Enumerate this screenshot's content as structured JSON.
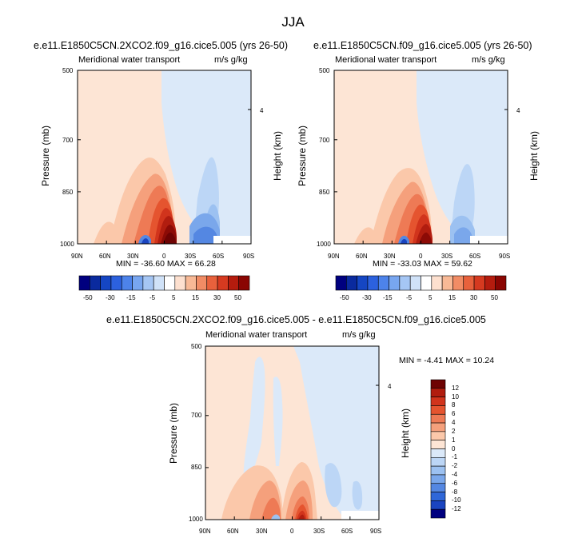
{
  "figure": {
    "title": "JJA"
  },
  "colors": {
    "positive_palette": [
      "#fde5d5",
      "#fbc8aa",
      "#f5a07c",
      "#ee7a55",
      "#e5542f",
      "#d1341c",
      "#b11d0f",
      "#8c0b06",
      "#6e0303"
    ],
    "negative_palette": [
      "#dbe9f9",
      "#bcd6f6",
      "#9cc1f1",
      "#7aa7eb",
      "#5487e2",
      "#2f67d8",
      "#1a44c0",
      "#0c2aa0",
      "#051a7a"
    ],
    "colorbar_top": [
      "#00007f",
      "#0a2a9e",
      "#1546c3",
      "#2c61de",
      "#4d83ea",
      "#78a6f0",
      "#a5c6f4",
      "#d0e2f8",
      "#ffffff",
      "#fde0cf",
      "#f8b996",
      "#f18c65",
      "#e8613c",
      "#d63a20",
      "#b51c0e",
      "#8a0502"
    ],
    "colorbar_diff": [
      "#6e0303",
      "#b11d0f",
      "#d1341c",
      "#e5542f",
      "#ee7a55",
      "#f5a07c",
      "#fbc8aa",
      "#fde5d5",
      "#dbe9f9",
      "#bcd6f6",
      "#9cc1f1",
      "#7aa7eb",
      "#5487e2",
      "#2f67d8",
      "#1a44c0",
      "#00007f"
    ]
  },
  "chart_data": [
    {
      "type": "heatmap",
      "title": "e.e11.E1850C5CN.2XCO2.f09_g16.cice5.005 (yrs 26-50)",
      "left_label": "Meridional water transport",
      "right_label": "m/s g/kg",
      "xlabel": "",
      "ylabel": "Pressure (mb)",
      "ylabel_right": "Height (km)",
      "xticks": [
        "90N",
        "60N",
        "30N",
        "0",
        "30S",
        "60S",
        "90S"
      ],
      "yticks": [
        "500",
        "700",
        "850",
        "1000"
      ],
      "yticks_right": [
        "4"
      ],
      "xlim": [
        "90N",
        "90S"
      ],
      "ylim": [
        1000,
        500
      ],
      "stats": "MIN = -36.60   MAX =  66.28",
      "min": -36.6,
      "max": 66.28
    },
    {
      "type": "heatmap",
      "title": "e.e11.E1850C5CN.f09_g16.cice5.005 (yrs 26-50)",
      "left_label": "Meridional water transport",
      "right_label": "m/s g/kg",
      "xlabel": "",
      "ylabel": "Pressure (mb)",
      "ylabel_right": "Height (km)",
      "xticks": [
        "90N",
        "60N",
        "30N",
        "0",
        "30S",
        "60S",
        "90S"
      ],
      "yticks": [
        "500",
        "700",
        "850",
        "1000"
      ],
      "yticks_right": [
        "4"
      ],
      "xlim": [
        "90N",
        "90S"
      ],
      "ylim": [
        1000,
        500
      ],
      "stats": "MIN = -33.03   MAX =  59.62",
      "min": -33.03,
      "max": 59.62
    },
    {
      "type": "heatmap",
      "title": "e.e11.E1850C5CN.2XCO2.f09_g16.cice5.005 - e.e11.E1850C5CN.f09_g16.cice5.005",
      "left_label": "Meridional water transport",
      "right_label": "m/s g/kg",
      "xlabel": "",
      "ylabel": "Pressure (mb)",
      "ylabel_right": "Height (km)",
      "xticks": [
        "90N",
        "60N",
        "30N",
        "0",
        "30S",
        "60S",
        "90S"
      ],
      "yticks": [
        "500",
        "700",
        "850",
        "1000"
      ],
      "yticks_right": [
        "4"
      ],
      "xlim": [
        "90N",
        "90S"
      ],
      "ylim": [
        1000,
        500
      ],
      "stats": "MIN =  -4.41   MAX =  10.24",
      "min": -4.41,
      "max": 10.24
    }
  ],
  "colorbars": {
    "top": {
      "labels": [
        "-50",
        "-30",
        "-15",
        "-5",
        "5",
        "15",
        "30",
        "50"
      ],
      "orientation": "horizontal"
    },
    "diff": {
      "labels": [
        "12",
        "10",
        "8",
        "6",
        "4",
        "2",
        "1",
        "0",
        "-1",
        "-2",
        "-4",
        "-6",
        "-8",
        "-10",
        "-12"
      ],
      "orientation": "vertical"
    }
  }
}
